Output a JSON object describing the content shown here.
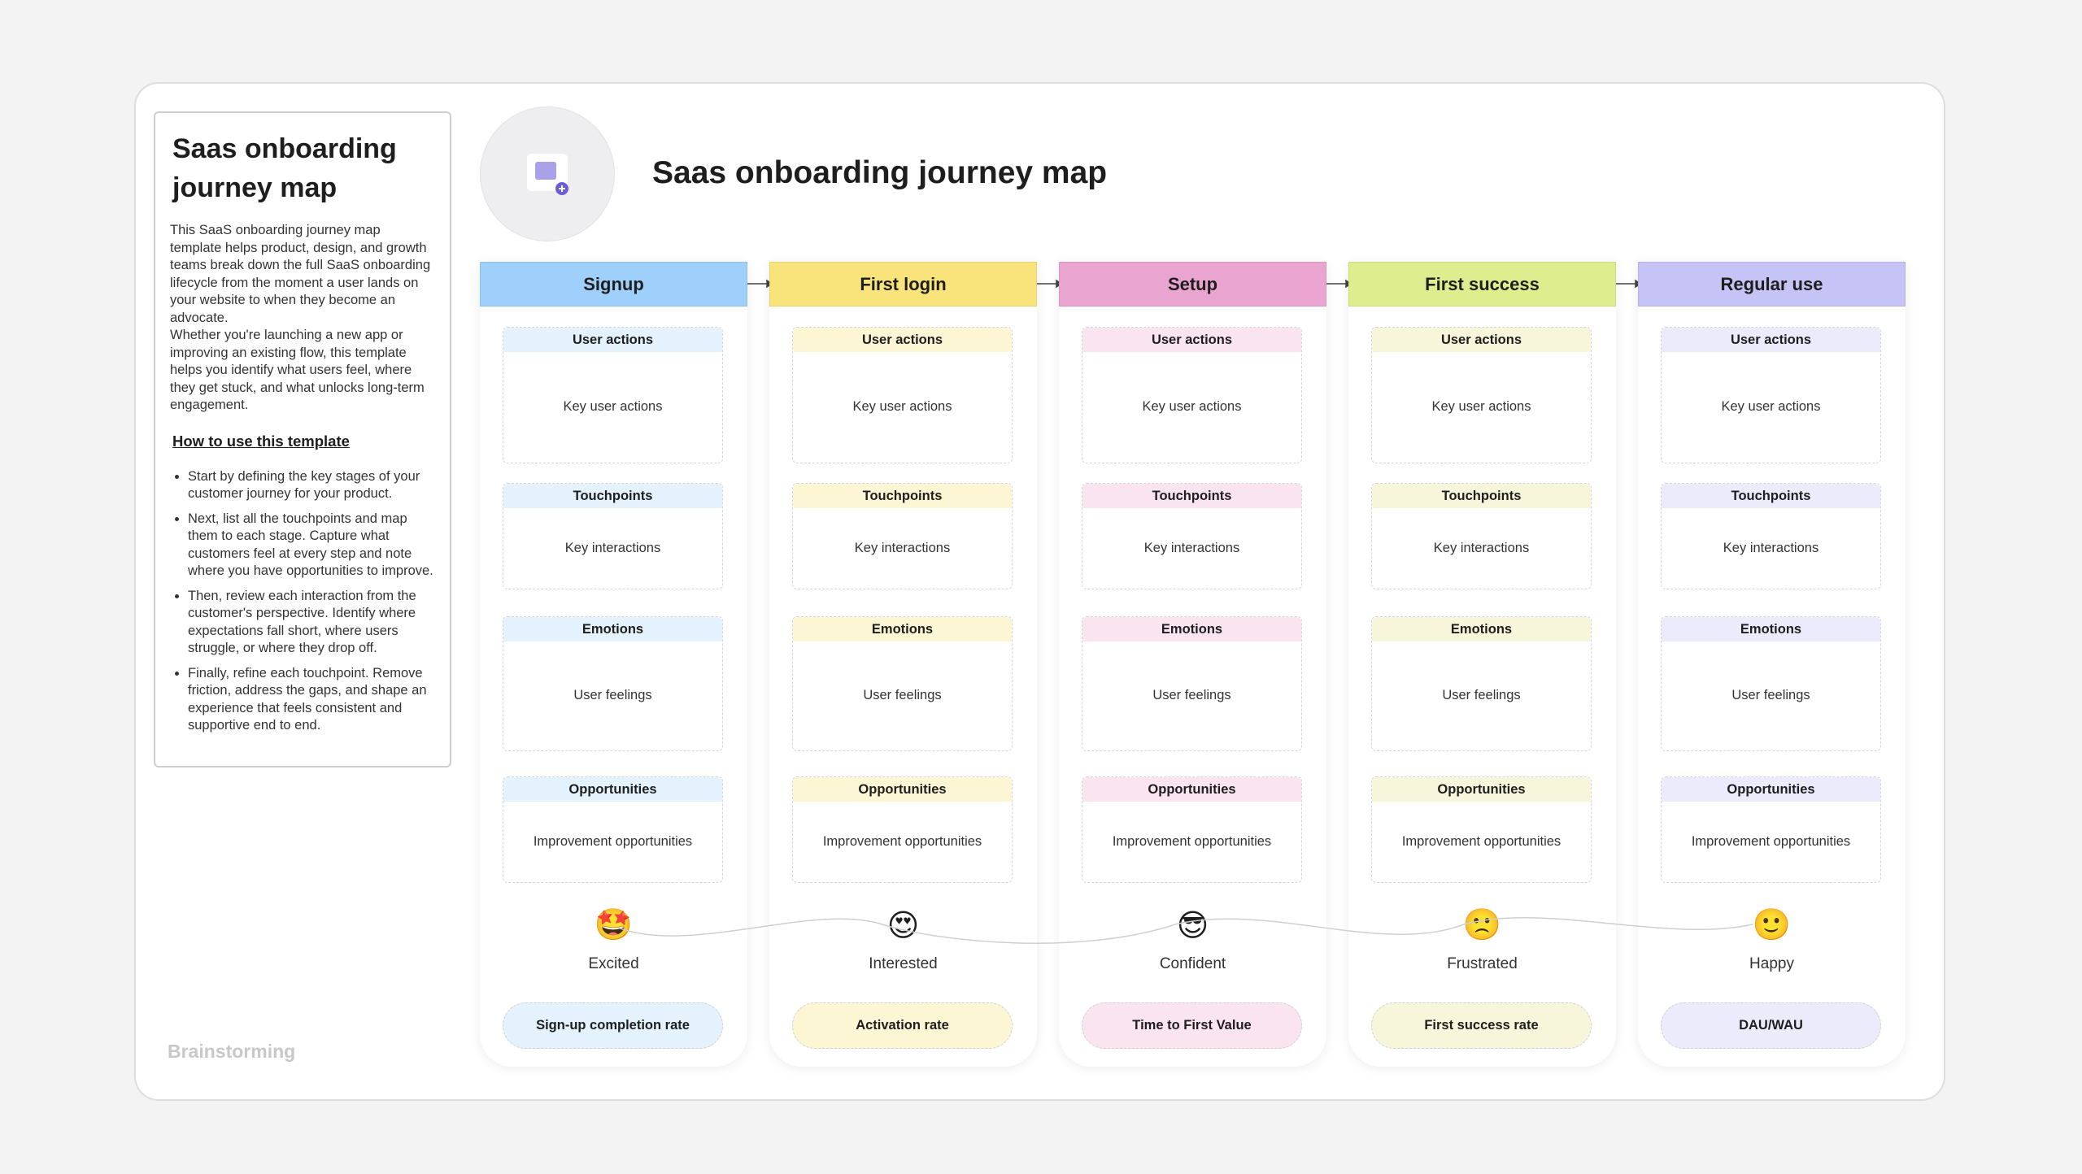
{
  "header": {
    "title": "Saas onboarding journey map"
  },
  "sidebar": {
    "title": "Saas onboarding journey map",
    "paragraphs": [
      "This SaaS onboarding journey map template helps product, design, and growth teams break down the full SaaS onboarding lifecycle from the moment a user lands on your website to when they become an advocate.",
      "Whether you're launching a new app or improving an existing flow, this template helps you identify what users feel, where they get stuck, and what unlocks long-term engagement."
    ],
    "how_to_title": "How to use this template",
    "steps": [
      "Start by defining the key stages of your customer journey for your product.",
      "Next, list all the touchpoints and map them to each stage. Capture what customers feel at every step and note where you have opportunities to improve.",
      "Then, review each interaction from the customer's perspective. Identify where expectations fall short, where users struggle, or where they drop off.",
      "Finally, refine each touchpoint. Remove friction, address the gaps, and shape an experience that feels consistent and supportive end to end."
    ],
    "footer": "Brainstorming"
  },
  "stages": [
    {
      "name": "Signup",
      "color": "#9fd0fb",
      "light": "#e3f2fd",
      "sections": [
        {
          "title": "User actions",
          "body": "Key user actions"
        },
        {
          "title": "Touchpoints",
          "body": "Key interactions"
        },
        {
          "title": "Emotions",
          "body": "User feelings"
        },
        {
          "title": "Opportunities",
          "body": "Improvement opportunities"
        }
      ],
      "emoji": "🤩",
      "emotion": "Excited",
      "metric": "Sign-up completion rate"
    },
    {
      "name": "First login",
      "color": "#f9e47c",
      "light": "#fcf6d4",
      "sections": [
        {
          "title": "User actions",
          "body": "Key user actions"
        },
        {
          "title": "Touchpoints",
          "body": "Key interactions"
        },
        {
          "title": "Emotions",
          "body": "User feelings"
        },
        {
          "title": "Opportunities",
          "body": "Improvement opportunities"
        }
      ],
      "emoji": "😍",
      "emotion": "Interested",
      "metric": "Activation rate"
    },
    {
      "name": "Setup",
      "color": "#e9a5cf",
      "light": "#fae4ef",
      "sections": [
        {
          "title": "User actions",
          "body": "Key user actions"
        },
        {
          "title": "Touchpoints",
          "body": "Key interactions"
        },
        {
          "title": "Emotions",
          "body": "User feelings"
        },
        {
          "title": "Opportunities",
          "body": "Improvement opportunities"
        }
      ],
      "emoji": "😎",
      "emotion": "Confident",
      "metric": "Time to First Value"
    },
    {
      "name": "First success",
      "color": "#deee8e",
      "light": "#f7f6da",
      "sections": [
        {
          "title": "User actions",
          "body": "Key user actions"
        },
        {
          "title": "Touchpoints",
          "body": "Key interactions"
        },
        {
          "title": "Emotions",
          "body": "User feelings"
        },
        {
          "title": "Opportunities",
          "body": "Improvement opportunities"
        }
      ],
      "emoji": "🙁",
      "emotion": "Frustrated",
      "metric": "First success rate"
    },
    {
      "name": "Regular use",
      "color": "#c6c3f6",
      "light": "#ecebfb",
      "sections": [
        {
          "title": "User actions",
          "body": "Key user actions"
        },
        {
          "title": "Touchpoints",
          "body": "Key interactions"
        },
        {
          "title": "Emotions",
          "body": "User feelings"
        },
        {
          "title": "Opportunities",
          "body": "Improvement opportunities"
        }
      ],
      "emoji": "🙂",
      "emotion": "Happy",
      "metric": "DAU/WAU"
    }
  ]
}
